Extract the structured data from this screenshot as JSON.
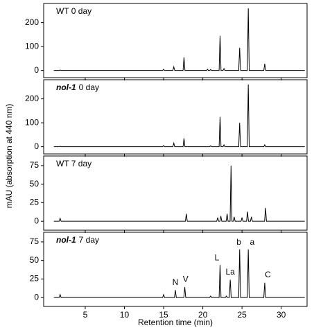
{
  "ylabel": "mAU (absorption at 440 nm)",
  "xlabel": "Retention time (min)",
  "chart_data": [
    {
      "type": "line",
      "title": "WT 0 day",
      "x": [
        1,
        1.68,
        1.8,
        1.92,
        14.88,
        15,
        15.12,
        16.18,
        16.3,
        16.42,
        17.48,
        17.6,
        17.72,
        20.48,
        20.6,
        20.72,
        20.88,
        21,
        21.12,
        22.08,
        22.2,
        22.32,
        22.58,
        22.7,
        22.82,
        24.58,
        24.7,
        24.82,
        25.68,
        25.8,
        25.92,
        27.78,
        27.9,
        28.02,
        33
      ],
      "series": [
        {
          "color": "#000000",
          "values": [
            0,
            0,
            2,
            0,
            0,
            5,
            0,
            0,
            15,
            0,
            0,
            55,
            0,
            0,
            5,
            0,
            0,
            4,
            0,
            0,
            145,
            0,
            0,
            8,
            0,
            0,
            95,
            0,
            0,
            260,
            0,
            0,
            28,
            0,
            0
          ]
        }
      ],
      "xlim": [
        -0.3,
        33.3
      ],
      "xticks": [
        5,
        10,
        15,
        20,
        25,
        30
      ],
      "ylim": [
        -30,
        280
      ],
      "yticks": [
        0,
        100,
        200
      ]
    },
    {
      "type": "line",
      "title": {
        "italic": "nol-1",
        "text": "0 day"
      },
      "x": [
        1,
        1.68,
        1.8,
        1.92,
        14.88,
        15,
        15.12,
        16.18,
        16.3,
        16.42,
        17.48,
        17.6,
        17.72,
        20.88,
        21,
        21.12,
        22.08,
        22.2,
        22.32,
        22.58,
        22.7,
        22.82,
        24.58,
        24.7,
        24.82,
        25.68,
        25.8,
        25.92,
        27.78,
        27.9,
        28.02,
        33
      ],
      "series": [
        {
          "color": "#000000",
          "values": [
            0,
            0,
            2,
            0,
            0,
            5,
            0,
            0,
            15,
            0,
            0,
            35,
            0,
            0,
            4,
            0,
            0,
            125,
            0,
            0,
            8,
            0,
            0,
            100,
            0,
            0,
            260,
            0,
            0,
            8,
            0,
            0
          ]
        }
      ],
      "xlim": [
        -0.3,
        33.3
      ],
      "xticks": [
        5,
        10,
        15,
        20,
        25,
        30
      ],
      "ylim": [
        -30,
        280
      ],
      "yticks": [
        0,
        100,
        200
      ]
    },
    {
      "type": "line",
      "title": "WT 7 day",
      "x": [
        1,
        1.68,
        1.8,
        1.92,
        17.78,
        17.9,
        18.02,
        21.78,
        21.9,
        22.02,
        22.18,
        22.3,
        22.42,
        22.98,
        23.1,
        23.22,
        23.48,
        23.6,
        23.72,
        23.88,
        24,
        24.12,
        24.88,
        25,
        25.12,
        25.58,
        25.7,
        25.82,
        26.08,
        26.2,
        26.32,
        27.88,
        28,
        28.12,
        33
      ],
      "series": [
        {
          "color": "#000000",
          "values": [
            0,
            0,
            4,
            0,
            0,
            10,
            0,
            0,
            5,
            0,
            0,
            7,
            0,
            0,
            10,
            0,
            0,
            75,
            0,
            0,
            6,
            0,
            0,
            5,
            0,
            0,
            13,
            0,
            0,
            6,
            0,
            0,
            18,
            0,
            0
          ]
        }
      ],
      "xlim": [
        -0.3,
        33.3
      ],
      "xticks": [
        5,
        10,
        15,
        20,
        25,
        30
      ],
      "ylim": [
        -12,
        88
      ],
      "yticks": [
        0,
        25,
        50,
        75
      ]
    },
    {
      "type": "line",
      "title": {
        "italic": "nol-1",
        "text": "7 day"
      },
      "x": [
        1,
        1.68,
        1.8,
        1.92,
        14.88,
        15,
        15.12,
        16.38,
        16.5,
        16.62,
        17.58,
        17.7,
        17.82,
        20.88,
        21,
        21.12,
        22.08,
        22.2,
        22.32,
        22.88,
        23,
        23.12,
        23.38,
        23.5,
        23.62,
        24.58,
        24.7,
        24.82,
        25.68,
        25.8,
        25.92,
        27.78,
        27.9,
        28.02,
        33
      ],
      "series": [
        {
          "color": "#000000",
          "values": [
            0,
            0,
            4,
            0,
            0,
            4,
            0,
            0,
            10,
            0,
            0,
            14,
            0,
            0,
            2,
            0,
            0,
            44,
            0,
            0,
            2,
            0,
            0,
            24,
            0,
            0,
            65,
            0,
            0,
            65,
            0,
            0,
            20,
            0,
            0
          ]
        }
      ],
      "xlim": [
        -0.3,
        33.3
      ],
      "xticks": [
        5,
        10,
        15,
        20,
        25,
        30
      ],
      "ylim": [
        -12,
        88
      ],
      "yticks": [
        0,
        25,
        50,
        75
      ],
      "annotations": [
        {
          "text": "N",
          "x": 16.5,
          "y": 20
        },
        {
          "text": "V",
          "x": 17.8,
          "y": 24
        },
        {
          "text": "L",
          "x": 21.8,
          "y": 53
        },
        {
          "text": "La",
          "x": 23.5,
          "y": 34
        },
        {
          "text": "b",
          "x": 24.6,
          "y": 74
        },
        {
          "text": "a",
          "x": 26.3,
          "y": 74
        },
        {
          "text": "C",
          "x": 28.3,
          "y": 30
        }
      ]
    }
  ]
}
